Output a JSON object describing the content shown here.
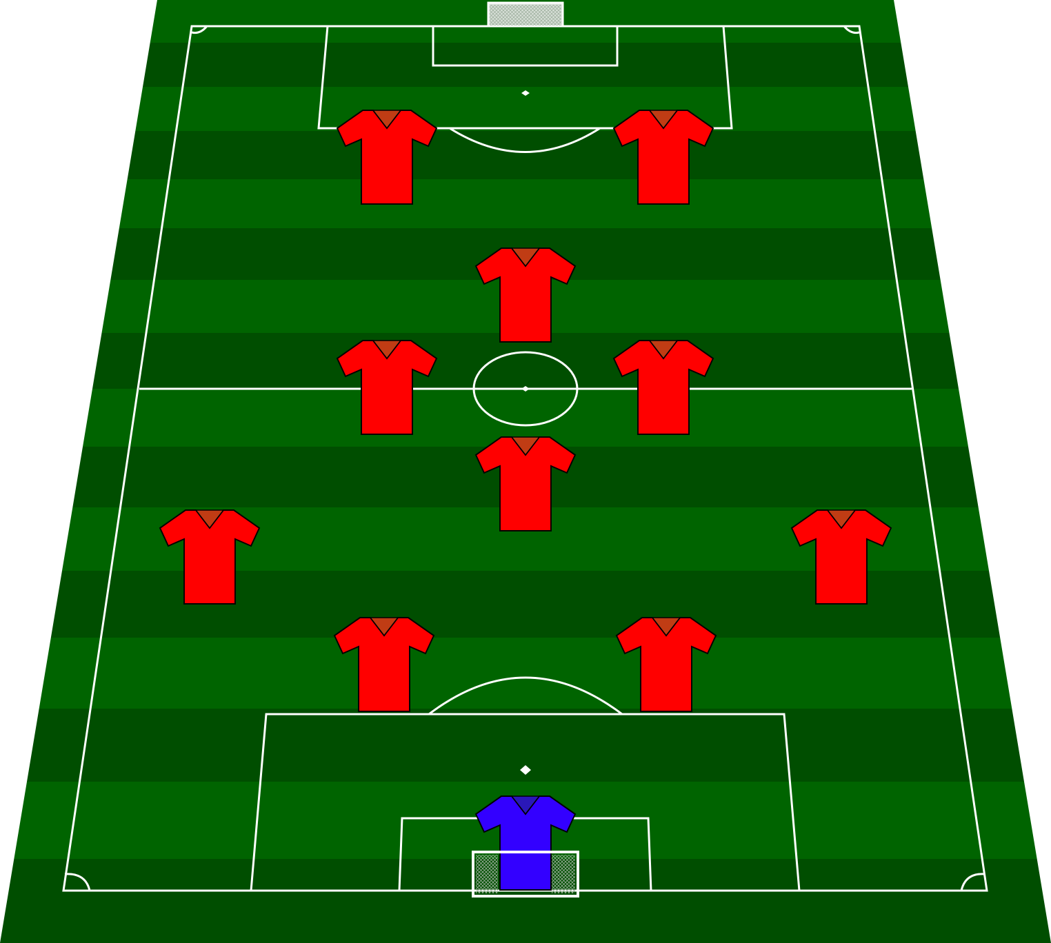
{
  "colors": {
    "stripe_light": "#006400",
    "stripe_dark": "#004e00",
    "lines": "#ffffff",
    "outfield_shirt": "#ff0000",
    "outfield_collar": "#c03c14",
    "goalkeeper_shirt": "#3300ff",
    "goalkeeper_collar": "#2a18b8",
    "shirt_outline": "#000000",
    "goal_net": "#cfd8cf"
  },
  "team": {
    "formation": "4-4-2",
    "players": [
      {
        "role": "goalkeeper",
        "kit": "goalkeeper"
      },
      {
        "role": "defender",
        "kit": "outfield"
      },
      {
        "role": "defender",
        "kit": "outfield"
      },
      {
        "role": "defender",
        "kit": "outfield"
      },
      {
        "role": "defender",
        "kit": "outfield"
      },
      {
        "role": "midfielder",
        "kit": "outfield"
      },
      {
        "role": "midfielder",
        "kit": "outfield"
      },
      {
        "role": "midfielder",
        "kit": "outfield"
      },
      {
        "role": "midfielder",
        "kit": "outfield"
      },
      {
        "role": "forward",
        "kit": "outfield"
      },
      {
        "role": "forward",
        "kit": "outfield"
      }
    ]
  }
}
